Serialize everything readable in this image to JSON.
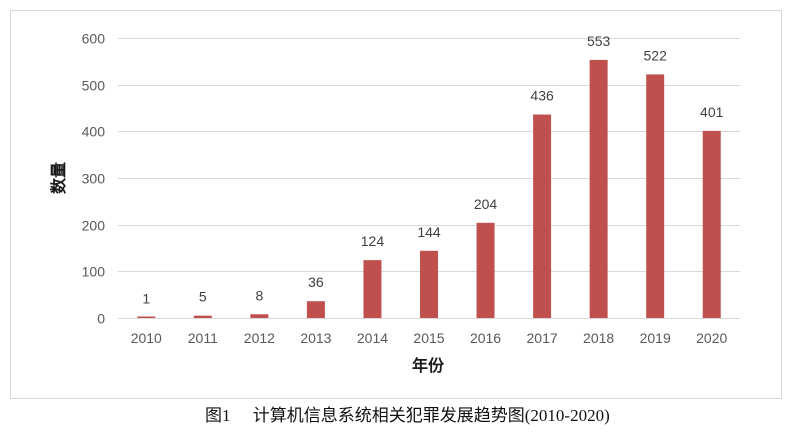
{
  "figure": {
    "label": "图1"
  },
  "chart_data": {
    "type": "bar",
    "title": "计算机信息系统相关犯罪发展趋势图(2010-2020)",
    "xlabel": "年份",
    "ylabel": "数量",
    "categories": [
      "2010",
      "2011",
      "2012",
      "2013",
      "2014",
      "2015",
      "2016",
      "2017",
      "2018",
      "2019",
      "2020"
    ],
    "values": [
      1,
      5,
      8,
      36,
      124,
      144,
      204,
      436,
      553,
      522,
      401
    ],
    "ylim": [
      0,
      600
    ],
    "yticks": [
      0,
      100,
      200,
      300,
      400,
      500,
      600
    ],
    "grid": true,
    "legend": "none",
    "data_labels": true
  },
  "colors": {
    "bar": "#C0504D",
    "grid": "#D9D9D9",
    "frame": "#D9D9D9"
  }
}
